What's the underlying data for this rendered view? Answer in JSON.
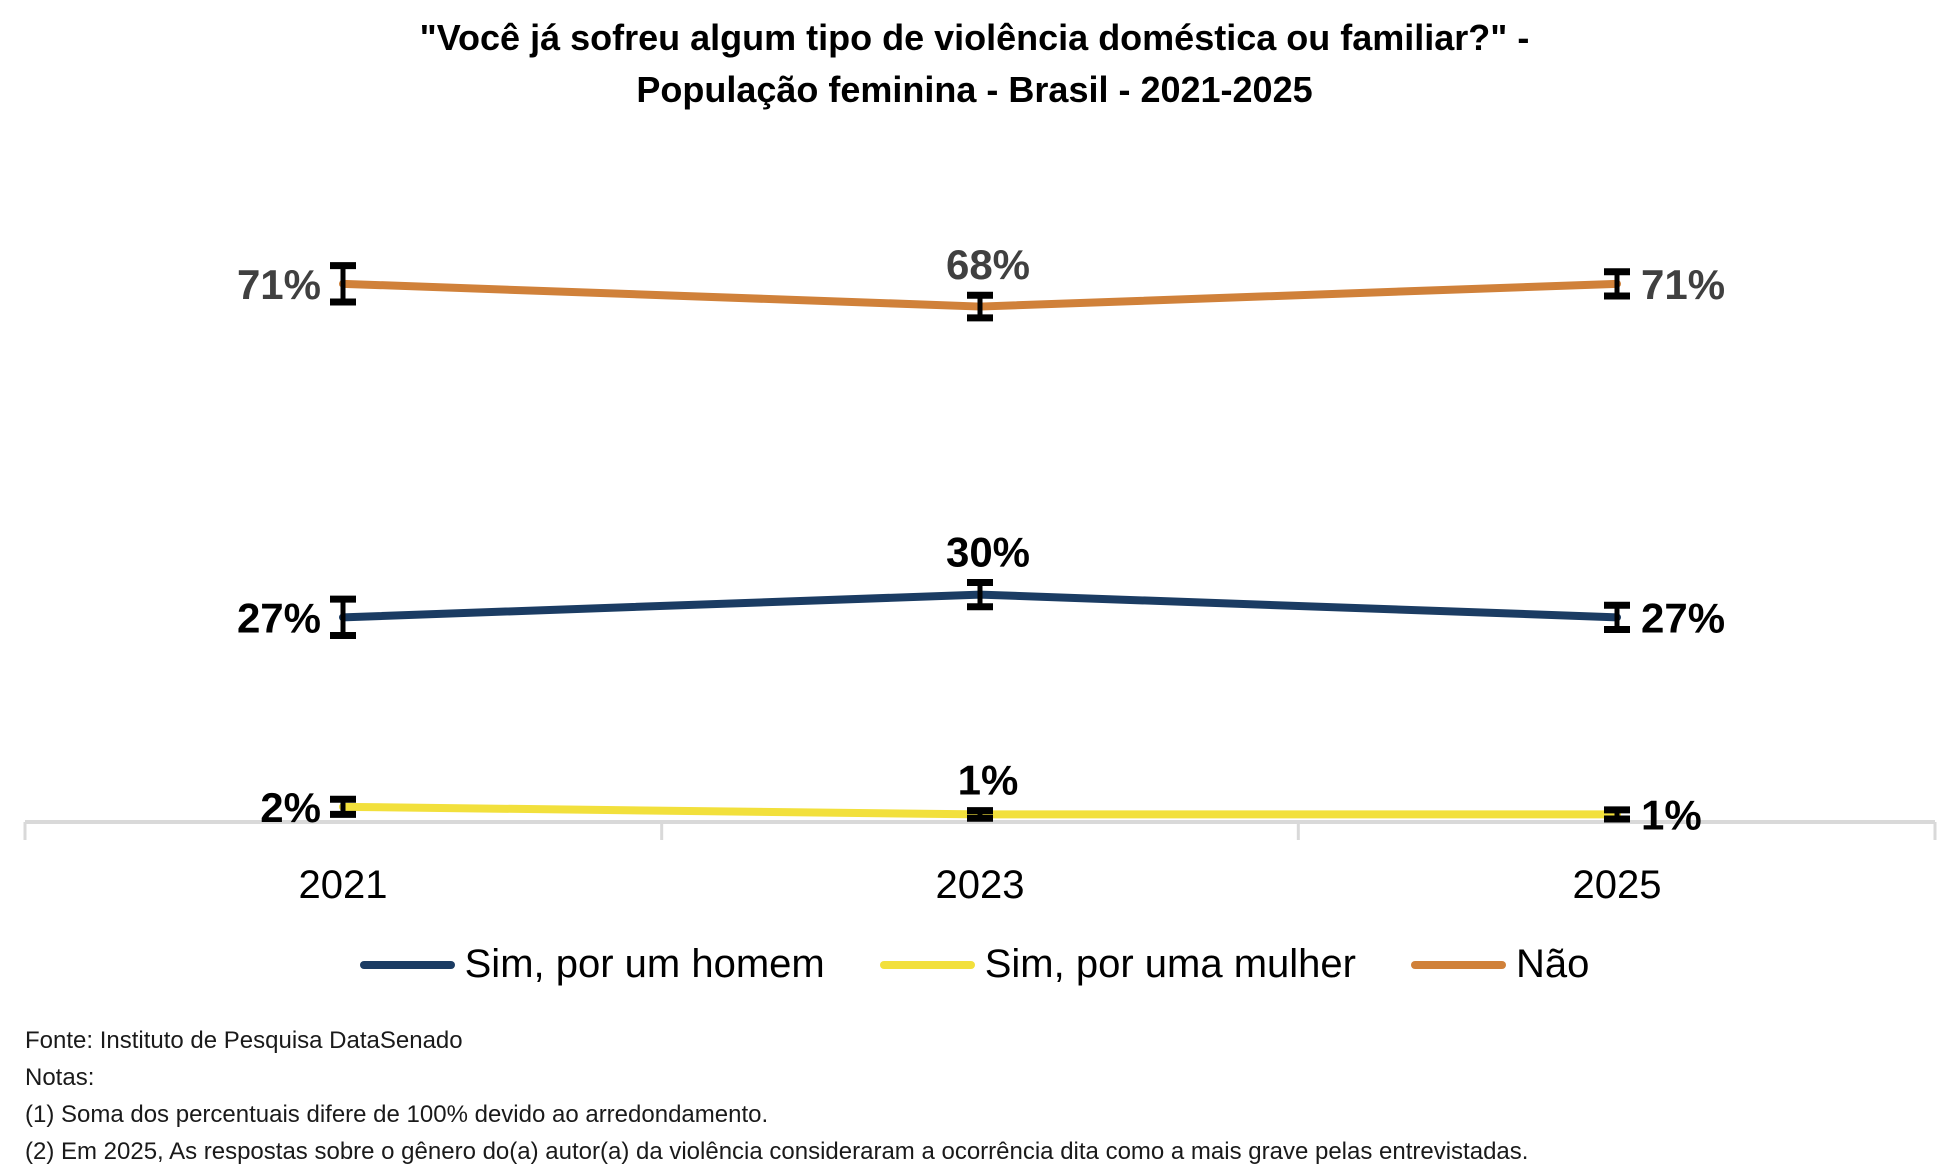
{
  "title": {
    "line1": "\"Você já sofreu algum tipo de violência doméstica ou familiar?\" -",
    "line2": "População feminina - Brasil - 2021-2025"
  },
  "chart_data": {
    "type": "line",
    "categories": [
      "2021",
      "2023",
      "2025"
    ],
    "series": [
      {
        "name": "Sim, por um homem",
        "color": "#1B3C63",
        "label_color": "#000000",
        "values": [
          27,
          30,
          27
        ],
        "errors": [
          2.4,
          1.6,
          1.6
        ],
        "labels": [
          "27%",
          "30%",
          "27%"
        ]
      },
      {
        "name": "Sim, por uma mulher",
        "color": "#F2E03C",
        "label_color": "#000000",
        "values": [
          2,
          1,
          1
        ],
        "errors": [
          1.0,
          0.5,
          0.6
        ],
        "labels": [
          "2%",
          "1%",
          "1%"
        ]
      },
      {
        "name": "Não",
        "color": "#D0813A",
        "label_color": "#404040",
        "values": [
          71,
          68,
          71
        ],
        "errors": [
          2.4,
          1.5,
          1.6
        ],
        "labels": [
          "71%",
          "68%",
          "71%"
        ]
      }
    ],
    "ylim": [
      0,
      100
    ],
    "grid": false,
    "legend_position": "bottom",
    "axis_color": "#D9D9D9",
    "error_bar_color": "#000000"
  },
  "footer": {
    "source": "Fonte: Instituto de Pesquisa DataSenado",
    "notes_label": "Notas:",
    "note1": "(1) Soma dos percentuais difere de 100% devido ao arredondamento.",
    "note2": "(2) Em 2025, As respostas sobre o gênero do(a) autor(a) da violência consideraram a ocorrência dita como a mais grave pelas entrevistadas."
  }
}
